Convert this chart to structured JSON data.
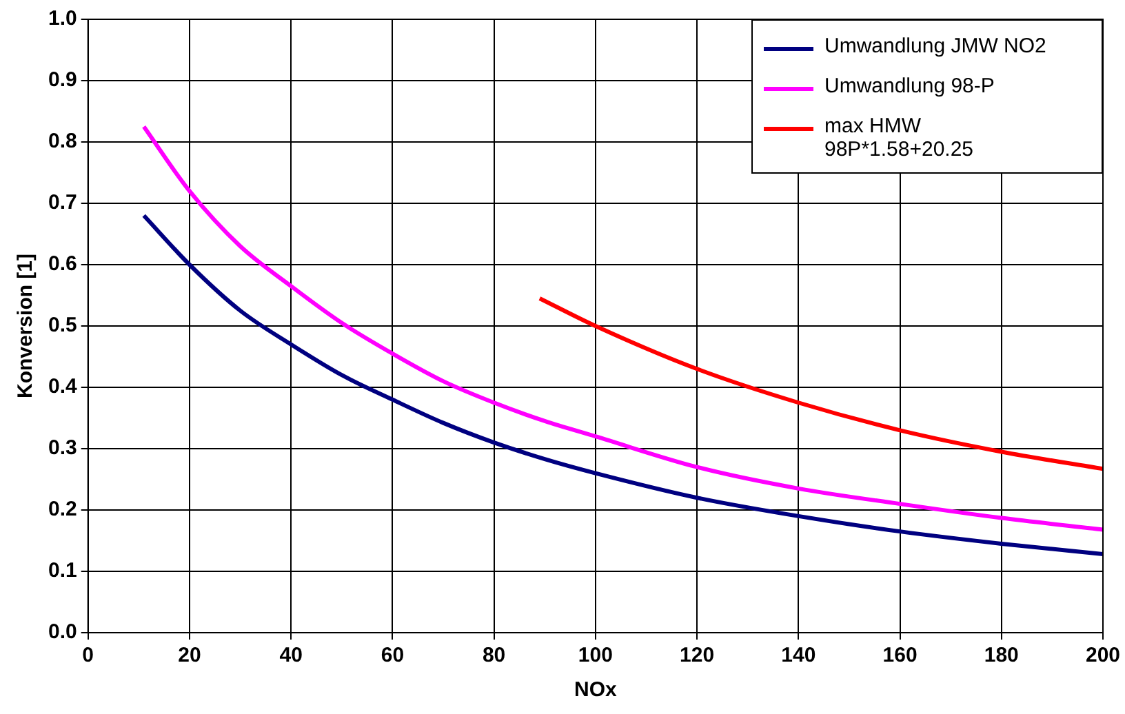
{
  "chart_data": {
    "type": "line",
    "xlabel": "NOx",
    "ylabel": "Konversion [1]",
    "xlim": [
      0,
      200
    ],
    "xticks": [
      0,
      20,
      40,
      60,
      80,
      100,
      120,
      140,
      160,
      180,
      200
    ],
    "ylim": [
      0,
      1
    ],
    "yticks": [
      {
        "value": 0,
        "label": "0.0"
      },
      0.1,
      0.2,
      0.3,
      0.4,
      0.5,
      0.6,
      0.7,
      0.8,
      0.9,
      {
        "value": 1,
        "label": "1.0"
      }
    ],
    "grid": true,
    "legend": "top right",
    "marker": "none",
    "series": [
      {
        "name": "Umwandlung JMW NO2",
        "color": "#000080",
        "x": [
          11,
          20,
          30,
          40,
          50,
          60,
          70,
          80,
          90,
          100,
          120,
          140,
          160,
          180,
          200
        ],
        "values": [
          0.68,
          0.6,
          0.525,
          0.47,
          0.42,
          0.38,
          0.342,
          0.31,
          0.283,
          0.26,
          0.22,
          0.19,
          0.165,
          0.145,
          0.128
        ]
      },
      {
        "name": "Umwandlung 98-P",
        "color": "#ff00ff",
        "x": [
          11,
          20,
          30,
          40,
          50,
          60,
          70,
          80,
          90,
          100,
          120,
          140,
          160,
          180,
          200
        ],
        "values": [
          0.825,
          0.72,
          0.63,
          0.565,
          0.505,
          0.455,
          0.41,
          0.375,
          0.345,
          0.32,
          0.27,
          0.235,
          0.21,
          0.187,
          0.168
        ]
      },
      {
        "name": "max HMW 98P*1.58+20.25",
        "color": "#ff0000",
        "x": [
          89,
          100,
          120,
          140,
          160,
          180,
          200
        ],
        "values": [
          0.545,
          0.5,
          0.43,
          0.375,
          0.33,
          0.295,
          0.267
        ]
      }
    ]
  }
}
